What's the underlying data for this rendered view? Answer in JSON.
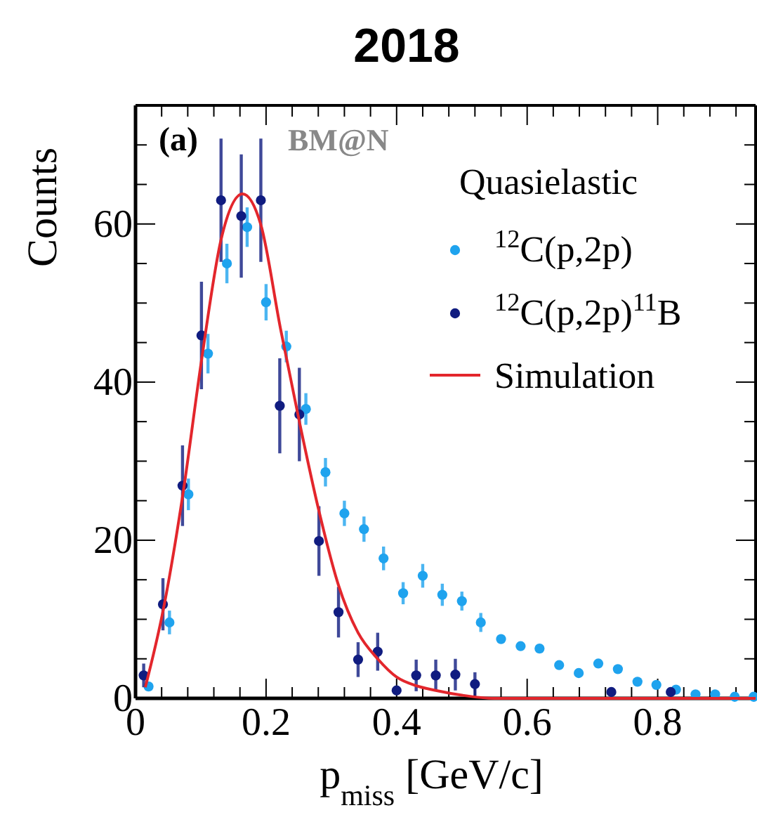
{
  "chart_data": {
    "type": "scatter",
    "title": "2018",
    "xlabel": "p$_{miss}$ [GeV/c]",
    "ylabel": "Counts",
    "legend_title": "Quasielastic",
    "legend": "top right",
    "annotations": [
      "(a)",
      "BM@N"
    ],
    "xlim": [
      0,
      0.95
    ],
    "xticks": [
      0,
      {
        "value": 0.04,
        "label": null
      },
      {
        "value": 0.08,
        "label": null
      },
      {
        "value": 0.12,
        "label": null
      },
      {
        "value": 0.16,
        "label": null
      },
      0.2,
      {
        "value": 0.24,
        "label": null
      },
      {
        "value": 0.28,
        "label": null
      },
      {
        "value": 0.32,
        "label": null
      },
      {
        "value": 0.36,
        "label": null
      },
      0.4,
      {
        "value": 0.44,
        "label": null
      },
      {
        "value": 0.48,
        "label": null
      },
      {
        "value": 0.52,
        "label": null
      },
      {
        "value": 0.56,
        "label": null
      },
      0.6,
      {
        "value": 0.64,
        "label": null
      },
      {
        "value": 0.68,
        "label": null
      },
      {
        "value": 0.72,
        "label": null
      },
      {
        "value": 0.76,
        "label": null
      },
      0.8,
      {
        "value": 0.84,
        "label": null
      },
      {
        "value": 0.88,
        "label": null
      },
      {
        "value": 0.92,
        "label": null
      }
    ],
    "ylim": [
      0,
      75
    ],
    "yticks": [
      0,
      {
        "value": 5,
        "label": null
      },
      {
        "value": 10,
        "label": null
      },
      {
        "value": 15,
        "label": null
      },
      20,
      {
        "value": 25,
        "label": null
      },
      {
        "value": 30,
        "label": null
      },
      {
        "value": 35,
        "label": null
      },
      40,
      {
        "value": 45,
        "label": null
      },
      {
        "value": 50,
        "label": null
      },
      {
        "value": 55,
        "label": null
      },
      60,
      {
        "value": 65,
        "label": null
      },
      {
        "value": 70,
        "label": null
      }
    ],
    "series": [
      {
        "name": "$^{12}$C(p,2p)",
        "marker": "circle",
        "color": "#1fa3ee",
        "x": [
          0.02,
          0.052,
          0.081,
          0.111,
          0.14,
          0.171,
          0.2,
          0.231,
          0.261,
          0.291,
          0.32,
          0.35,
          0.38,
          0.41,
          0.44,
          0.47,
          0.5,
          0.529,
          0.56,
          0.59,
          0.619,
          0.649,
          0.679,
          0.709,
          0.739,
          0.769,
          0.798,
          0.828,
          0.858,
          0.888,
          0.918,
          0.947
        ],
        "values": [
          1.5,
          9.6,
          25.8,
          43.6,
          55,
          59.6,
          50.1,
          44.5,
          36.6,
          28.6,
          23.4,
          21.4,
          17.7,
          13.3,
          15.5,
          13.1,
          12.3,
          9.6,
          7.5,
          6.6,
          6.3,
          4.2,
          3.2,
          4.4,
          3.7,
          2.1,
          1.7,
          1.1,
          0.5,
          0.5,
          0.2,
          0.2
        ],
        "errors": [
          null,
          1.5,
          2,
          2.5,
          2.5,
          2.5,
          2.3,
          2,
          2,
          1.8,
          1.6,
          1.6,
          1.5,
          1.4,
          1.5,
          1.4,
          1.2,
          1.2,
          null,
          null,
          null,
          null,
          null,
          null,
          null,
          null,
          null,
          null,
          null,
          null,
          null,
          null
        ]
      },
      {
        "name": "$^{12}$C(p,2p)$^{11}$B",
        "marker": "circle",
        "color": "#101c80",
        "x": [
          0.0125,
          0.042,
          0.072,
          0.101,
          0.131,
          0.162,
          0.192,
          0.221,
          0.251,
          0.281,
          0.311,
          0.341,
          0.371,
          0.4,
          0.43,
          0.46,
          0.49,
          0.52,
          0.729,
          0.82
        ],
        "values": [
          2.9,
          11.9,
          26.9,
          45.9,
          63,
          61,
          63,
          37,
          35.9,
          19.9,
          10.9,
          4.9,
          5.9,
          1,
          2.9,
          2.9,
          3,
          1.8,
          0.8,
          0.8
        ],
        "errors": [
          1.5,
          3.3,
          5.1,
          6.8,
          7.8,
          7.8,
          7.8,
          6,
          5.9,
          4.4,
          3.2,
          2.2,
          2.4,
          null,
          2,
          2,
          2,
          1.5,
          null,
          null
        ]
      },
      {
        "name": "Simulation",
        "type": "line",
        "color": "#e3262c",
        "line_style": "solid",
        "x": [
          0.015,
          0.042,
          0.072,
          0.101,
          0.131,
          0.164,
          0.192,
          0.222,
          0.251,
          0.281,
          0.311,
          0.341,
          0.371,
          0.4,
          0.43,
          0.46,
          0.5,
          0.55,
          0.6,
          0.95
        ],
        "values": [
          1.4,
          11,
          25.5,
          42.7,
          58,
          63.8,
          59.9,
          46.8,
          35,
          23.7,
          14.3,
          8.3,
          5,
          2.7,
          1.6,
          1,
          0.4,
          0,
          0,
          0
        ]
      }
    ]
  }
}
